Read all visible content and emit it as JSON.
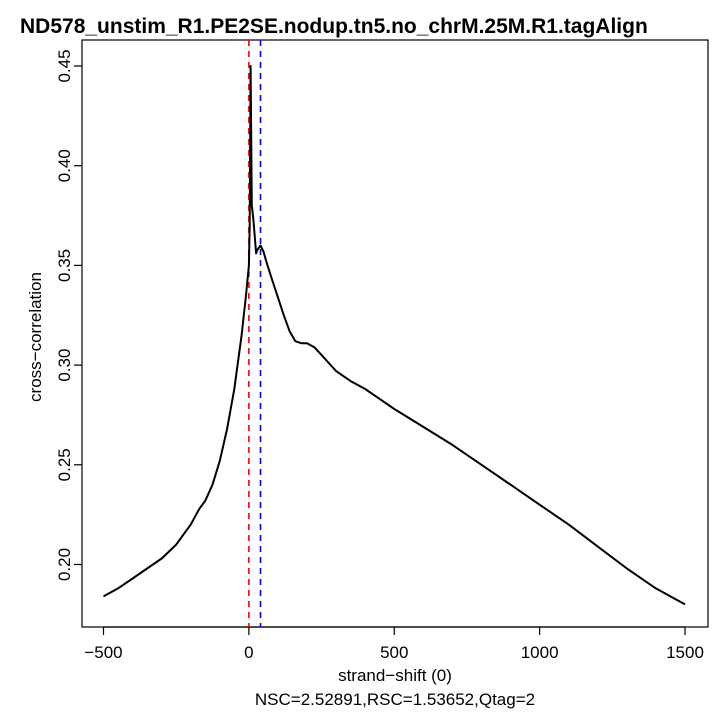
{
  "chart_data": {
    "type": "line",
    "title": "ND578_unstim_R1.PE2SE.nodup.tn5.no_chrM.25M.R1.tagAlign",
    "xlabel": "strand−shift (0)",
    "ylabel": "cross−correlation",
    "subtitle": "NSC=2.52891,RSC=1.53652,Qtag=2",
    "xlim": [
      -500,
      1500
    ],
    "ylim": [
      0.18,
      0.45
    ],
    "x_ticks": [
      -500,
      0,
      500,
      1000,
      1500
    ],
    "x_tick_labels": [
      "−500",
      "0",
      "500",
      "1000",
      "1500"
    ],
    "y_ticks": [
      0.2,
      0.25,
      0.3,
      0.35,
      0.4,
      0.45
    ],
    "y_tick_labels": [
      "0.20",
      "0.25",
      "0.30",
      "0.35",
      "0.40",
      "0.45"
    ],
    "grid": false,
    "series": [
      {
        "color": "#000000",
        "x": [
          -500,
          -450,
          -400,
          -350,
          -300,
          -250,
          -200,
          -170,
          -150,
          -125,
          -100,
          -75,
          -50,
          -25,
          -10,
          0,
          3,
          6,
          10,
          15,
          20,
          25,
          30,
          40,
          50,
          60,
          75,
          100,
          120,
          140,
          160,
          180,
          200,
          225,
          250,
          300,
          350,
          400,
          500,
          600,
          700,
          800,
          900,
          1000,
          1100,
          1200,
          1300,
          1400,
          1500
        ],
        "y": [
          0.184,
          0.188,
          0.193,
          0.198,
          0.203,
          0.21,
          0.22,
          0.228,
          0.232,
          0.24,
          0.252,
          0.268,
          0.288,
          0.315,
          0.335,
          0.35,
          0.37,
          0.45,
          0.38,
          0.374,
          0.365,
          0.356,
          0.358,
          0.36,
          0.357,
          0.352,
          0.345,
          0.334,
          0.325,
          0.317,
          0.312,
          0.311,
          0.311,
          0.309,
          0.305,
          0.297,
          0.292,
          0.288,
          0.278,
          0.269,
          0.26,
          0.25,
          0.24,
          0.23,
          0.22,
          0.209,
          0.198,
          0.188,
          0.18
        ]
      }
    ],
    "vlines": [
      {
        "x": 0,
        "color": "#ff0000",
        "style": "dashed"
      },
      {
        "x": 40,
        "color": "#0000ff",
        "style": "dashed"
      }
    ]
  }
}
